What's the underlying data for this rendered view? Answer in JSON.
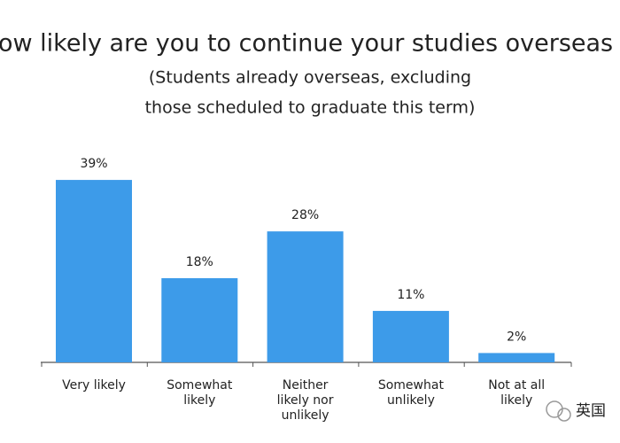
{
  "chart_data": {
    "type": "bar",
    "title": "ow likely are you to continue your studies overseas this aut",
    "subtitle": [
      "(Students already overseas, excluding",
      "those scheduled to graduate this term)"
    ],
    "categories": [
      [
        "Very likely"
      ],
      [
        "Somewhat",
        "likely"
      ],
      [
        "Neither",
        "likely nor",
        "unlikely"
      ],
      [
        "Somewhat",
        "unlikely"
      ],
      [
        "Not at all",
        "likely"
      ]
    ],
    "values": [
      39,
      18,
      28,
      11,
      2
    ],
    "value_labels": [
      "39%",
      "18%",
      "28%",
      "11%",
      "2%"
    ],
    "color": "#3d9be9",
    "watermark": "英国"
  }
}
